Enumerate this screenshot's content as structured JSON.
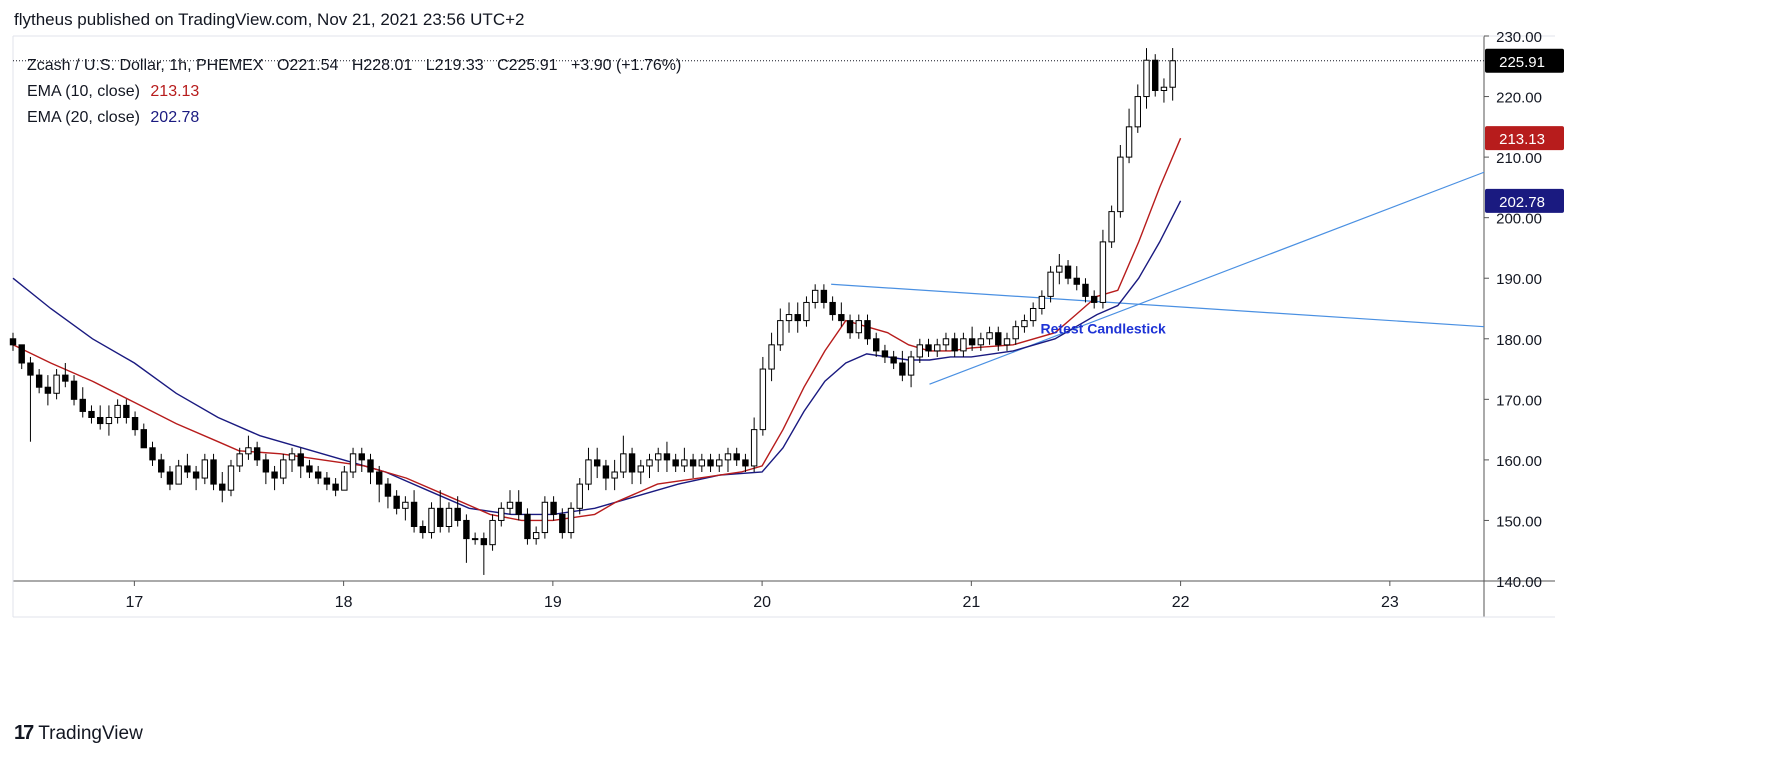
{
  "header": {
    "published": "flytheus published on TradingView.com, Nov 21, 2021 23:56 UTC+2"
  },
  "legend": {
    "symbol": "Zcash / U.S. Dollar, 1h, PHEMEX",
    "open": "O221.54",
    "high": "H228.01",
    "low": "L219.33",
    "close": "C225.91",
    "change": "+3.90 (+1.76%)",
    "ema10_label": "EMA (10, close)",
    "ema10_value": "213.13",
    "ema20_label": "EMA (20, close)",
    "ema20_value": "202.78"
  },
  "footer": {
    "brand": "TradingView",
    "logo_glyph": "17"
  },
  "colors": {
    "ema10": "#b71c1c",
    "ema20": "#1a1a80",
    "trendline": "#4a90e2",
    "annotation": "#1e33d6",
    "price_badge": "#000000"
  },
  "chart_data": {
    "type": "candlestick",
    "title": "Zcash / U.S. Dollar, 1h, PHEMEX",
    "x_axis": {
      "start_day": 16.42,
      "end_day": 23.45,
      "ticks": [
        "17",
        "18",
        "19",
        "20",
        "21",
        "22",
        "23"
      ],
      "tick_days": [
        17,
        18,
        19,
        20,
        21,
        22,
        23
      ]
    },
    "y_axis": {
      "min": 140,
      "max": 230,
      "ticks": [
        "140.00",
        "150.00",
        "160.00",
        "170.00",
        "180.00",
        "190.00",
        "200.00",
        "210.00",
        "220.00",
        "230.00"
      ],
      "tick_values": [
        140,
        150,
        160,
        170,
        180,
        190,
        200,
        210,
        220,
        230
      ]
    },
    "badges": [
      {
        "label": "225.91",
        "value": 225.91,
        "color": "#000000"
      },
      {
        "label": "213.13",
        "value": 213.13,
        "color": "#b71c1c"
      },
      {
        "label": "202.78",
        "value": 202.78,
        "color": "#1a1a80"
      }
    ],
    "candle_start_day": 16.42,
    "candle_step_day": 0.04167,
    "ohlc": [
      [
        180,
        181,
        178,
        179
      ],
      [
        179,
        179,
        175,
        176
      ],
      [
        176,
        177,
        163,
        174
      ],
      [
        174,
        175,
        171,
        172
      ],
      [
        172,
        174,
        169,
        171
      ],
      [
        171,
        175,
        170,
        174
      ],
      [
        174,
        176,
        172,
        173
      ],
      [
        173,
        174,
        169,
        170
      ],
      [
        170,
        172,
        167,
        168
      ],
      [
        168,
        169,
        166,
        167
      ],
      [
        167,
        169,
        165,
        166
      ],
      [
        166,
        169,
        164,
        167
      ],
      [
        167,
        170,
        166,
        169
      ],
      [
        169,
        170,
        166,
        167
      ],
      [
        167,
        168,
        164,
        165
      ],
      [
        165,
        166,
        162,
        162
      ],
      [
        162,
        163,
        159,
        160
      ],
      [
        160,
        161,
        157,
        158
      ],
      [
        158,
        159,
        155,
        156
      ],
      [
        156,
        160,
        156,
        159
      ],
      [
        159,
        161,
        157,
        158
      ],
      [
        158,
        159,
        155,
        157
      ],
      [
        157,
        161,
        156,
        160
      ],
      [
        160,
        161,
        155,
        156
      ],
      [
        156,
        158,
        153,
        155
      ],
      [
        155,
        160,
        154,
        159
      ],
      [
        159,
        162,
        158,
        161
      ],
      [
        161,
        164,
        160,
        162
      ],
      [
        162,
        163,
        159,
        160
      ],
      [
        160,
        161,
        156,
        158
      ],
      [
        158,
        159,
        155,
        157
      ],
      [
        157,
        161,
        156,
        160
      ],
      [
        160,
        162,
        158,
        161
      ],
      [
        161,
        162,
        157,
        159
      ],
      [
        159,
        160,
        157,
        158
      ],
      [
        158,
        159,
        156,
        157
      ],
      [
        157,
        158,
        155,
        156
      ],
      [
        156,
        157,
        154,
        155
      ],
      [
        155,
        159,
        155,
        158
      ],
      [
        158,
        162,
        157,
        161
      ],
      [
        161,
        162,
        158,
        160
      ],
      [
        160,
        161,
        156,
        158
      ],
      [
        158,
        159,
        153,
        156
      ],
      [
        156,
        157,
        152,
        154
      ],
      [
        154,
        155,
        151,
        152
      ],
      [
        152,
        154,
        150,
        153
      ],
      [
        153,
        155,
        148,
        149
      ],
      [
        149,
        150,
        147,
        148
      ],
      [
        148,
        153,
        147,
        152
      ],
      [
        152,
        155,
        148,
        149
      ],
      [
        149,
        153,
        148,
        152
      ],
      [
        152,
        154,
        149,
        150
      ],
      [
        150,
        151,
        143,
        147
      ],
      [
        147,
        148,
        146,
        147
      ],
      [
        147,
        148,
        141,
        146
      ],
      [
        146,
        151,
        145,
        150
      ],
      [
        150,
        153,
        149,
        152
      ],
      [
        152,
        155,
        151,
        153
      ],
      [
        153,
        155,
        150,
        151
      ],
      [
        151,
        152,
        146,
        147
      ],
      [
        147,
        149,
        146,
        148
      ],
      [
        148,
        154,
        147,
        153
      ],
      [
        153,
        154,
        150,
        151
      ],
      [
        151,
        152,
        147,
        148
      ],
      [
        148,
        153,
        147,
        152
      ],
      [
        152,
        157,
        151,
        156
      ],
      [
        156,
        162,
        155,
        160
      ],
      [
        160,
        162,
        157,
        159
      ],
      [
        159,
        160,
        155,
        157
      ],
      [
        157,
        160,
        155,
        158
      ],
      [
        158,
        164,
        157,
        161
      ],
      [
        161,
        162,
        156,
        158
      ],
      [
        158,
        160,
        156,
        159
      ],
      [
        159,
        161,
        157,
        160
      ],
      [
        160,
        162,
        158,
        161
      ],
      [
        161,
        163,
        158,
        160
      ],
      [
        160,
        161,
        158,
        159
      ],
      [
        159,
        162,
        158,
        160
      ],
      [
        160,
        161,
        157,
        159
      ],
      [
        159,
        161,
        158,
        160
      ],
      [
        160,
        161,
        158,
        159
      ],
      [
        159,
        161,
        158,
        160
      ],
      [
        160,
        162,
        158,
        161
      ],
      [
        161,
        162,
        159,
        160
      ],
      [
        160,
        161,
        158,
        159
      ],
      [
        159,
        167,
        158,
        165
      ],
      [
        165,
        177,
        164,
        175
      ],
      [
        175,
        181,
        173,
        179
      ],
      [
        179,
        185,
        178,
        183
      ],
      [
        183,
        186,
        181,
        184
      ],
      [
        184,
        186,
        181,
        183
      ],
      [
        183,
        187,
        182,
        186
      ],
      [
        186,
        189,
        185,
        188
      ],
      [
        188,
        189,
        185,
        186
      ],
      [
        186,
        187,
        183,
        184
      ],
      [
        184,
        186,
        182,
        183
      ],
      [
        183,
        184,
        180,
        181
      ],
      [
        181,
        184,
        180,
        183
      ],
      [
        183,
        184,
        179,
        180
      ],
      [
        180,
        181,
        177,
        178
      ],
      [
        178,
        179,
        176,
        177
      ],
      [
        177,
        178,
        175,
        176
      ],
      [
        176,
        178,
        173,
        174
      ],
      [
        174,
        178,
        172,
        177
      ],
      [
        177,
        180,
        176,
        179
      ],
      [
        179,
        180,
        177,
        178
      ],
      [
        178,
        180,
        177,
        179
      ],
      [
        179,
        181,
        178,
        180
      ],
      [
        180,
        181,
        177,
        178
      ],
      [
        178,
        181,
        177,
        180
      ],
      [
        180,
        182,
        178,
        179
      ],
      [
        179,
        181,
        178,
        180
      ],
      [
        180,
        182,
        179,
        181
      ],
      [
        181,
        182,
        178,
        179
      ],
      [
        179,
        181,
        178,
        180
      ],
      [
        180,
        183,
        179,
        182
      ],
      [
        182,
        184,
        181,
        183
      ],
      [
        183,
        186,
        182,
        185
      ],
      [
        185,
        188,
        184,
        187
      ],
      [
        187,
        192,
        186,
        191
      ],
      [
        191,
        194,
        189,
        192
      ],
      [
        192,
        193,
        189,
        190
      ],
      [
        190,
        192,
        188,
        189
      ],
      [
        189,
        190,
        186,
        187
      ],
      [
        187,
        188,
        185,
        186
      ],
      [
        186,
        198,
        185,
        196
      ],
      [
        196,
        202,
        195,
        201
      ],
      [
        201,
        212,
        200,
        210
      ],
      [
        210,
        218,
        209,
        215
      ],
      [
        215,
        222,
        214,
        220
      ],
      [
        220,
        228,
        218,
        226
      ],
      [
        226,
        227,
        220,
        221
      ],
      [
        221,
        223,
        219,
        221.54
      ],
      [
        221.54,
        228.01,
        219.33,
        225.91
      ]
    ],
    "ema10": [
      [
        16.42,
        179
      ],
      [
        16.6,
        176
      ],
      [
        16.8,
        173
      ],
      [
        17.0,
        169.5
      ],
      [
        17.2,
        166
      ],
      [
        17.4,
        163
      ],
      [
        17.5,
        161.5
      ],
      [
        17.7,
        161
      ],
      [
        17.9,
        160
      ],
      [
        18.1,
        159
      ],
      [
        18.3,
        157
      ],
      [
        18.5,
        154
      ],
      [
        18.7,
        151
      ],
      [
        18.85,
        150
      ],
      [
        19.0,
        150
      ],
      [
        19.2,
        151
      ],
      [
        19.3,
        153
      ],
      [
        19.5,
        156
      ],
      [
        19.7,
        157
      ],
      [
        19.9,
        158
      ],
      [
        20.0,
        159
      ],
      [
        20.1,
        165
      ],
      [
        20.2,
        172
      ],
      [
        20.3,
        178
      ],
      [
        20.4,
        183
      ],
      [
        20.5,
        182
      ],
      [
        20.6,
        181
      ],
      [
        20.7,
        179
      ],
      [
        20.8,
        178
      ],
      [
        20.9,
        178
      ],
      [
        21.0,
        178.5
      ],
      [
        21.2,
        179
      ],
      [
        21.4,
        181
      ],
      [
        21.5,
        184
      ],
      [
        21.6,
        187
      ],
      [
        21.7,
        188
      ],
      [
        21.8,
        196
      ],
      [
        21.9,
        205
      ],
      [
        22.0,
        213.13
      ]
    ],
    "ema20": [
      [
        16.42,
        190
      ],
      [
        16.6,
        185
      ],
      [
        16.8,
        180
      ],
      [
        17.0,
        176
      ],
      [
        17.2,
        171
      ],
      [
        17.4,
        167
      ],
      [
        17.6,
        164
      ],
      [
        17.8,
        162
      ],
      [
        18.0,
        160
      ],
      [
        18.2,
        158
      ],
      [
        18.4,
        155
      ],
      [
        18.6,
        152
      ],
      [
        18.8,
        151
      ],
      [
        19.0,
        151
      ],
      [
        19.2,
        152
      ],
      [
        19.4,
        154
      ],
      [
        19.6,
        156
      ],
      [
        19.8,
        157.5
      ],
      [
        20.0,
        158
      ],
      [
        20.1,
        162
      ],
      [
        20.2,
        168
      ],
      [
        20.3,
        173
      ],
      [
        20.4,
        176
      ],
      [
        20.5,
        177.5
      ],
      [
        20.6,
        177
      ],
      [
        20.7,
        176.5
      ],
      [
        20.8,
        176.5
      ],
      [
        20.9,
        177
      ],
      [
        21.0,
        177
      ],
      [
        21.2,
        178
      ],
      [
        21.4,
        180
      ],
      [
        21.5,
        182
      ],
      [
        21.6,
        184
      ],
      [
        21.7,
        185.5
      ],
      [
        21.8,
        190
      ],
      [
        21.9,
        196
      ],
      [
        22.0,
        202.78
      ]
    ],
    "trendlines": [
      {
        "from": [
          20.33,
          189.0
        ],
        "to": [
          23.45,
          182.0
        ]
      },
      {
        "from": [
          20.8,
          172.5
        ],
        "to": [
          23.45,
          207.5
        ]
      }
    ],
    "annotation": {
      "text": "Retest Candlestick",
      "day": 21.63,
      "value": 181.5
    }
  }
}
